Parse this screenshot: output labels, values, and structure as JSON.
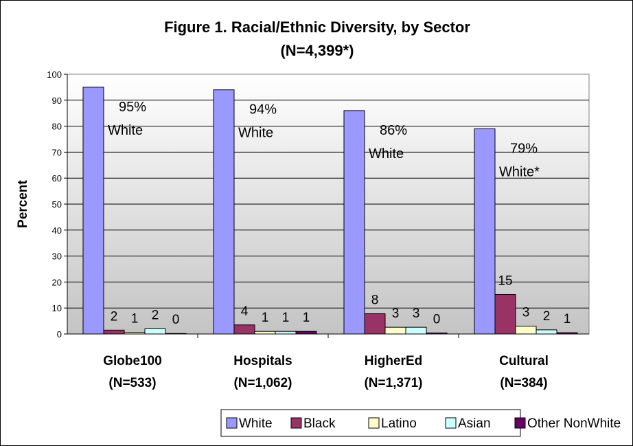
{
  "chart_data": {
    "type": "bar",
    "title": "Figure 1. Racial/Ethnic Diversity, by Sector",
    "subtitle": "(N=4,399*)",
    "ylabel": "Percent",
    "xlabel": "",
    "ylim": [
      0,
      100
    ],
    "yticks": [
      "0",
      "10",
      "20",
      "30",
      "40",
      "50",
      "60",
      "70",
      "80",
      "90",
      "100"
    ],
    "grid": true,
    "legend_position": "bottom",
    "categories": [
      {
        "name": "Globe100",
        "n": "(N=533)"
      },
      {
        "name": "Hospitals",
        "n": "(N=1,062)"
      },
      {
        "name": "HigherEd",
        "n": "(N=1,371)"
      },
      {
        "name": "Cultural",
        "n": "(N=384)"
      }
    ],
    "series": [
      {
        "name": "White",
        "color": "#9999ff",
        "values": [
          95,
          94,
          86,
          79
        ],
        "labels": [
          "",
          "",
          "",
          ""
        ]
      },
      {
        "name": "Black",
        "color": "#993366",
        "values": [
          1.5,
          3.5,
          7.8,
          15.2
        ],
        "labels": [
          "2",
          "4",
          "8",
          "15"
        ]
      },
      {
        "name": "Latino",
        "color": "#ffffcc",
        "values": [
          0.6,
          1.0,
          2.6,
          3.0
        ],
        "labels": [
          "1",
          "1",
          "3",
          "3"
        ]
      },
      {
        "name": "Asian",
        "color": "#ccffff",
        "values": [
          2.0,
          1.0,
          2.6,
          1.6
        ],
        "labels": [
          "2",
          "1",
          "3",
          "2"
        ]
      },
      {
        "name": "Other NonWhite",
        "color": "#660066",
        "values": [
          0.2,
          1.0,
          0.4,
          0.5
        ],
        "labels": [
          "0",
          "1",
          "0",
          "1"
        ]
      }
    ],
    "annotations": [
      {
        "pct": "95%",
        "label": "White"
      },
      {
        "pct": "94%",
        "label": "White"
      },
      {
        "pct": "86%",
        "label": "White"
      },
      {
        "pct": "79%",
        "label": "White*"
      }
    ]
  }
}
